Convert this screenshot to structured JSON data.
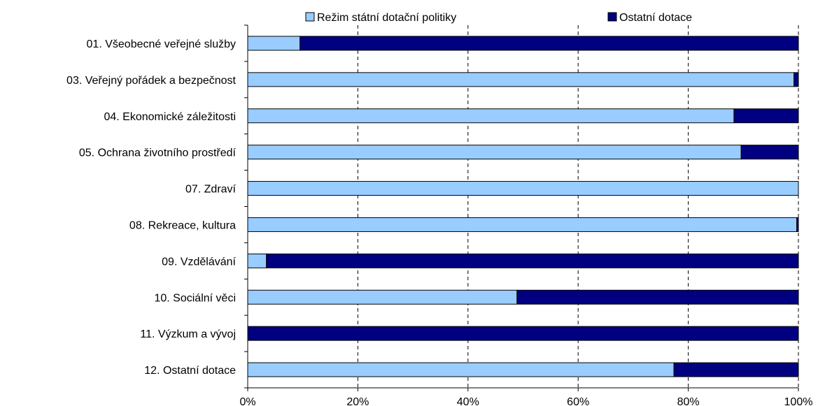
{
  "chart_data": {
    "type": "bar",
    "orientation": "horizontal",
    "stacked": "percent",
    "categories": [
      "01. Všeobecné veřejné služby",
      "03. Veřejný pořádek a bezpečnost",
      "04. Ekonomické záležitosti",
      "05. Ochrana životního prostředí",
      "07. Zdraví",
      "08. Rekreace, kultura",
      "09. Vzdělávání",
      "10. Sociální věci",
      "11. Výzkum a vývoj",
      "12. Ostatní dotace"
    ],
    "series": [
      {
        "name": "Režim státní dotační politiky",
        "color": "#99ccff",
        "values": [
          9.5,
          99.2,
          88.3,
          89.6,
          100,
          99.7,
          3.4,
          48.9,
          0,
          77.4
        ]
      },
      {
        "name": "Ostatní dotace",
        "color": "#000080",
        "values": [
          90.5,
          0.8,
          11.7,
          10.4,
          0,
          0.3,
          96.6,
          51.1,
          100,
          22.6
        ]
      }
    ],
    "xlim": [
      0,
      100
    ],
    "x_ticks": [
      "0%",
      "20%",
      "40%",
      "60%",
      "80%",
      "100%"
    ],
    "grid": "vertical dashed",
    "legend": "top"
  }
}
